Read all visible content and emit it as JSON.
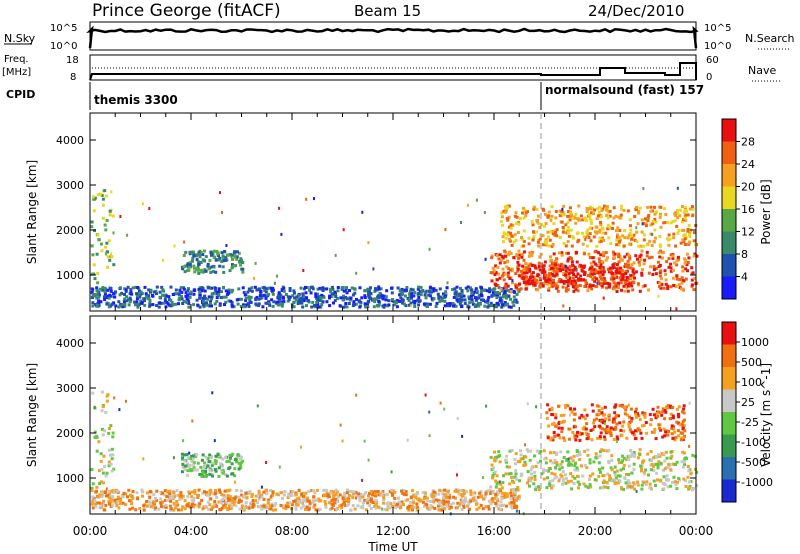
{
  "header": {
    "station": "Prince George (fitACF)",
    "beam": "Beam 15",
    "date": "24/Dec/2010"
  },
  "top_panels": {
    "nsky_label": "N.Sky",
    "nsearch_label": "N.Search",
    "nsky_ticks": [
      "10^5",
      "10^0"
    ],
    "nsearch_ticks": [
      "10^5",
      "10^0"
    ],
    "freq_label_1": "Freq.",
    "freq_label_2": "[MHz]",
    "freq_ticks": [
      "18",
      "8"
    ],
    "nave_label": "Nave",
    "nave_ticks": [
      "60",
      "0"
    ],
    "cpid_label": "CPID",
    "cpid_segments": [
      "themis 3300",
      "normalsound (fast) 157"
    ]
  },
  "chart_data": [
    {
      "type": "heatmap",
      "name": "Power",
      "ylabel": "Slant Range [km]",
      "xlabel": "",
      "x_ticks": [
        "00:00",
        "04:00",
        "08:00",
        "12:00",
        "16:00",
        "20:00",
        "00:00"
      ],
      "y_ticks": [
        1000,
        2000,
        3000,
        4000
      ],
      "ylim": [
        200,
        4600
      ],
      "xlim_hours": [
        0,
        24
      ],
      "colorbar_label": "Power [dB]",
      "colorbar_ticks": [
        "4",
        "8",
        "12",
        "16",
        "20",
        "24",
        "28"
      ],
      "colors": [
        "#1a1aff",
        "#2050b0",
        "#3a8a6a",
        "#58a845",
        "#e8d820",
        "#f5a020",
        "#f06010",
        "#e81010"
      ],
      "regions": [
        {
          "t0": 0.0,
          "t1": 0.9,
          "r0": 700,
          "r1": 2900,
          "level": 3
        },
        {
          "t0": 0.0,
          "t1": 17.0,
          "r0": 250,
          "r1": 700,
          "level": 1
        },
        {
          "t0": 3.6,
          "t1": 6.0,
          "r0": 1000,
          "r1": 1500,
          "level": 2
        },
        {
          "t0": 15.8,
          "t1": 24.0,
          "r0": 600,
          "r1": 1500,
          "level": 6
        },
        {
          "t0": 16.2,
          "t1": 24.0,
          "r0": 1600,
          "r1": 2500,
          "level": 5
        },
        {
          "t0": 16.8,
          "t1": 21.5,
          "r0": 700,
          "r1": 1200,
          "level": 7
        }
      ]
    },
    {
      "type": "heatmap",
      "name": "Velocity",
      "ylabel": "Slant Range [km]",
      "xlabel": "Time UT",
      "x_ticks": [
        "00:00",
        "04:00",
        "08:00",
        "12:00",
        "16:00",
        "20:00",
        "00:00"
      ],
      "y_ticks": [
        1000,
        2000,
        3000,
        4000
      ],
      "ylim": [
        200,
        4600
      ],
      "xlim_hours": [
        0,
        24
      ],
      "colorbar_label": "Velocity [m s^-1]",
      "colorbar_ticks": [
        "1000",
        "500",
        "100",
        "25",
        "-25",
        "-100",
        "-500",
        "-1000"
      ],
      "colors": [
        "#1a2ad0",
        "#2a70b0",
        "#3a9a50",
        "#60c840",
        "#c8c8c8",
        "#f5a020",
        "#f07010",
        "#e81010"
      ],
      "regions": [
        {
          "t0": 0.0,
          "t1": 0.9,
          "r0": 700,
          "r1": 2900,
          "level": 4
        },
        {
          "t0": 0.0,
          "t1": 17.0,
          "r0": 250,
          "r1": 700,
          "level": 5
        },
        {
          "t0": 3.6,
          "t1": 6.0,
          "r0": 1000,
          "r1": 1500,
          "level": 3
        },
        {
          "t0": 15.8,
          "t1": 24.0,
          "r0": 700,
          "r1": 1600,
          "level": 4
        },
        {
          "t0": 18.0,
          "t1": 23.5,
          "r0": 1800,
          "r1": 2600,
          "level": 6
        }
      ]
    }
  ]
}
